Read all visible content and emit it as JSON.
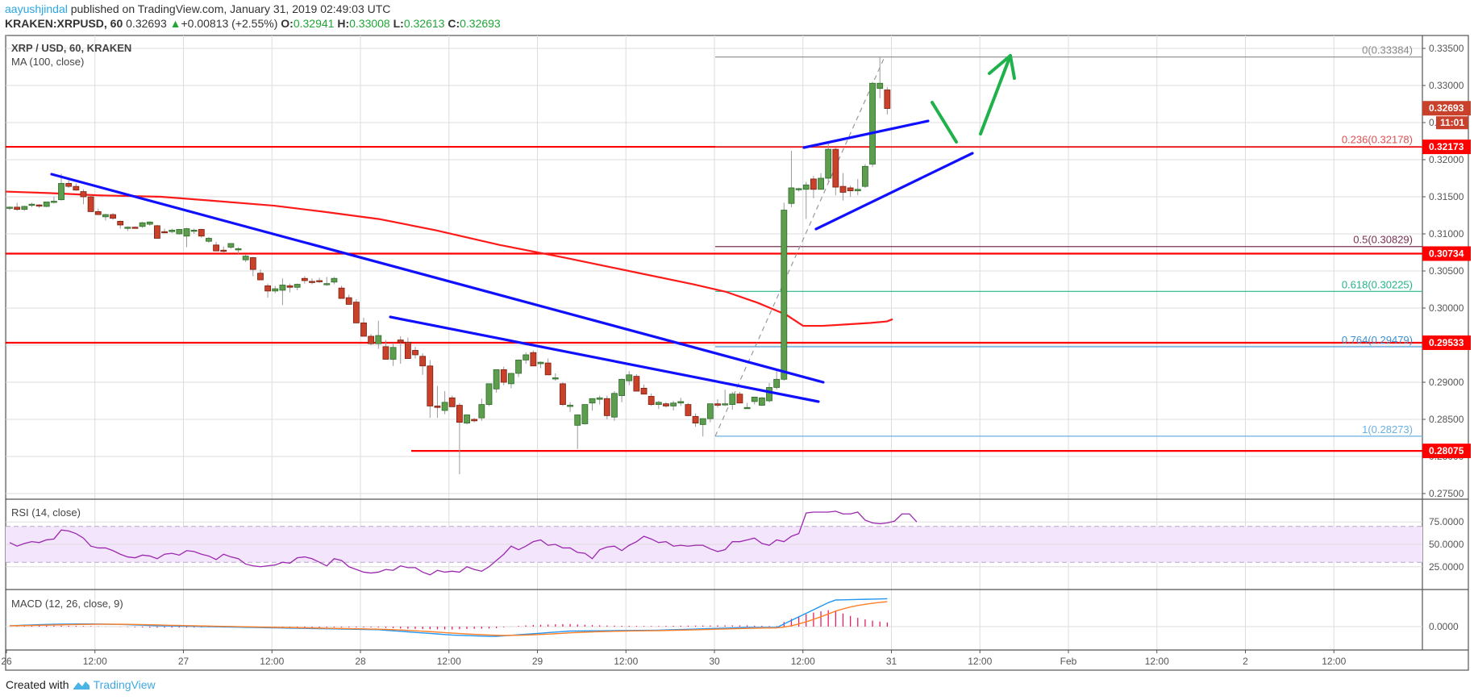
{
  "header": {
    "author": "aayushjindal",
    "published": " published on TradingView.com, January 31, 2019 02:49:03 UTC",
    "symbol": "KRAKEN:XRPUSD, 60",
    "last": "0.32693",
    "change": "+0.00813 (+2.55%)",
    "open_label": "O:",
    "open": "0.32941",
    "high_label": "H:",
    "high": "0.33008",
    "low_label": "L:",
    "low": "0.32613",
    "close_label": "C:",
    "close": "0.32693",
    "arrow": "▲"
  },
  "legends": {
    "main": "XRP / USD, 60, KRAKEN",
    "ma": "MA (100, close)",
    "rsi": "RSI (14, close)",
    "macd": "MACD (12, 26, close, 9)"
  },
  "footer": {
    "created": "Created with",
    "brand": "TradingView"
  },
  "colors": {
    "up": "#5d9e4e",
    "down": "#c9412a",
    "ma": "#ff1a1a",
    "trend": "#1010ff",
    "arrow": "#1fb24a",
    "rsi": "#9c27b0",
    "macd": "#2196f3",
    "signal": "#ff7f27",
    "hist": "#e91e63",
    "hline": "#ff0000"
  },
  "chart_data": {
    "type": "candlestick",
    "title": "XRP / USD, 60, KRAKEN",
    "price_axis_ticks": [
      "0.33500",
      "0.33000",
      "0.32500",
      "0.32000",
      "0.31500",
      "0.31000",
      "0.30500",
      "0.30000",
      "0.29500",
      "0.29000",
      "0.28500",
      "0.28000",
      "0.27500"
    ],
    "time_axis_ticks": [
      "26",
      "12:00",
      "27",
      "12:00",
      "28",
      "12:00",
      "29",
      "12:00",
      "30",
      "12:00",
      "31",
      "12:00",
      "Feb",
      "12:00",
      "2",
      "12:00"
    ],
    "ylim": [
      0.2735,
      0.3365
    ],
    "price_labels": [
      {
        "value": "0.32693",
        "color": "#c9412a"
      },
      {
        "value": "11:01",
        "color": "#c9412a"
      },
      {
        "value": "0.32173",
        "color": "#ff0000"
      },
      {
        "value": "0.30734",
        "color": "#ff0000"
      },
      {
        "value": "0.29533",
        "color": "#ff0000"
      },
      {
        "value": "0.28075",
        "color": "#ff0000"
      }
    ],
    "horizontal_levels": [
      0.32173,
      0.30734,
      0.29533,
      0.28075
    ],
    "fibonacci": [
      {
        "label": "0(0.33384)",
        "level": 0.33384,
        "color": "#888888"
      },
      {
        "label": "0.236(0.32178)",
        "level": 0.32178,
        "color": "#e05050"
      },
      {
        "label": "0.5(0.30829)",
        "level": 0.30829,
        "color": "#7a3050"
      },
      {
        "label": "0.618(0.30225)",
        "level": 0.30225,
        "color": "#26b58a"
      },
      {
        "label": "0.764(0.29479)",
        "level": 0.29479,
        "color": "#3a8fd0"
      },
      {
        "label": "1(0.28273)",
        "level": 0.28273,
        "color": "#6ab0e0"
      }
    ],
    "candles": [
      [
        0.3135,
        0.3137,
        0.3132,
        0.3136
      ],
      [
        0.3136,
        0.3142,
        0.3131,
        0.3133
      ],
      [
        0.3133,
        0.3138,
        0.3131,
        0.3137
      ],
      [
        0.3139,
        0.3142,
        0.3136,
        0.314
      ],
      [
        0.3139,
        0.314,
        0.3135,
        0.3138
      ],
      [
        0.3137,
        0.3143,
        0.3136,
        0.3143
      ],
      [
        0.3143,
        0.315,
        0.3141,
        0.3144
      ],
      [
        0.3146,
        0.3181,
        0.3145,
        0.3168
      ],
      [
        0.3168,
        0.3172,
        0.3162,
        0.3164
      ],
      [
        0.3164,
        0.3168,
        0.3158,
        0.3159
      ],
      [
        0.3157,
        0.316,
        0.314,
        0.315
      ],
      [
        0.315,
        0.3152,
        0.313,
        0.313
      ],
      [
        0.313,
        0.3134,
        0.3126,
        0.3126
      ],
      [
        0.3123,
        0.3127,
        0.3118,
        0.3126
      ],
      [
        0.3126,
        0.3128,
        0.3119,
        0.3121
      ],
      [
        0.3117,
        0.3118,
        0.3107,
        0.3112
      ],
      [
        0.3109,
        0.311,
        0.3104,
        0.3109
      ],
      [
        0.3109,
        0.311,
        0.3107,
        0.3108
      ],
      [
        0.311,
        0.3116,
        0.3108,
        0.3115
      ],
      [
        0.3113,
        0.3117,
        0.3111,
        0.3116
      ],
      [
        0.3111,
        0.3112,
        0.3094,
        0.3094
      ],
      [
        0.3103,
        0.3107,
        0.3101,
        0.3102
      ],
      [
        0.3103,
        0.3107,
        0.3101,
        0.3105
      ],
      [
        0.31,
        0.3106,
        0.3099,
        0.3106
      ],
      [
        0.3097,
        0.3108,
        0.3082,
        0.3107
      ],
      [
        0.3104,
        0.3107,
        0.31,
        0.3105
      ],
      [
        0.3106,
        0.3107,
        0.3095,
        0.3097
      ],
      [
        0.309,
        0.3096,
        0.3088,
        0.3094
      ],
      [
        0.3085,
        0.3089,
        0.308,
        0.3077
      ],
      [
        0.3078,
        0.3083,
        0.3074,
        0.3077
      ],
      [
        0.3082,
        0.3087,
        0.308,
        0.3087
      ],
      [
        0.308,
        0.3082,
        0.3073,
        0.308
      ],
      [
        0.3065,
        0.3072,
        0.3062,
        0.307
      ],
      [
        0.3068,
        0.3069,
        0.3043,
        0.3052
      ],
      [
        0.3047,
        0.3052,
        0.3038,
        0.3038
      ],
      [
        0.303,
        0.3033,
        0.3014,
        0.3023
      ],
      [
        0.3023,
        0.303,
        0.302,
        0.3026
      ],
      [
        0.3024,
        0.304,
        0.3004,
        0.3031
      ],
      [
        0.303,
        0.3033,
        0.3021,
        0.3028
      ],
      [
        0.3028,
        0.3033,
        0.3024,
        0.3032
      ],
      [
        0.304,
        0.3043,
        0.3033,
        0.3037
      ],
      [
        0.3036,
        0.304,
        0.3032,
        0.3035
      ],
      [
        0.3037,
        0.3041,
        0.3034,
        0.3036
      ],
      [
        0.3033,
        0.3042,
        0.303,
        0.3033
      ],
      [
        0.3035,
        0.3042,
        0.3032,
        0.304
      ],
      [
        0.3027,
        0.303,
        0.302,
        0.3013
      ],
      [
        0.3014,
        0.3018,
        0.3008,
        0.3005
      ],
      [
        0.3008,
        0.3012,
        0.2993,
        0.298
      ],
      [
        0.298,
        0.2987,
        0.2972,
        0.2962
      ],
      [
        0.2962,
        0.2965,
        0.295,
        0.2952
      ],
      [
        0.2952,
        0.2983,
        0.2945,
        0.2963
      ],
      [
        0.2948,
        0.2957,
        0.2935,
        0.2931
      ],
      [
        0.2931,
        0.2953,
        0.2922,
        0.2947
      ],
      [
        0.2957,
        0.2962,
        0.2925,
        0.2954
      ],
      [
        0.2954,
        0.296,
        0.2942,
        0.2932
      ],
      [
        0.2943,
        0.2948,
        0.2932,
        0.2937
      ],
      [
        0.2935,
        0.2939,
        0.291,
        0.2922
      ],
      [
        0.2922,
        0.293,
        0.2852,
        0.2868
      ],
      [
        0.2868,
        0.2895,
        0.2852,
        0.2866
      ],
      [
        0.2862,
        0.2888,
        0.2857,
        0.2873
      ],
      [
        0.2879,
        0.2882,
        0.287,
        0.2867
      ],
      [
        0.2869,
        0.2872,
        0.2776,
        0.2846
      ],
      [
        0.2845,
        0.2855,
        0.2843,
        0.2856
      ],
      [
        0.285,
        0.2852,
        0.2846,
        0.2848
      ],
      [
        0.2852,
        0.2878,
        0.2848,
        0.287
      ],
      [
        0.287,
        0.2889,
        0.2868,
        0.2898
      ],
      [
        0.2891,
        0.2902,
        0.2886,
        0.2917
      ],
      [
        0.2917,
        0.2921,
        0.2896,
        0.29
      ],
      [
        0.2898,
        0.2904,
        0.2892,
        0.2912
      ],
      [
        0.2912,
        0.2926,
        0.2907,
        0.293
      ],
      [
        0.293,
        0.294,
        0.2925,
        0.2937
      ],
      [
        0.294,
        0.2943,
        0.2925,
        0.2922
      ],
      [
        0.2925,
        0.2928,
        0.2919,
        0.2927
      ],
      [
        0.2926,
        0.2932,
        0.2911,
        0.291
      ],
      [
        0.2906,
        0.2912,
        0.2902,
        0.2906
      ],
      [
        0.2898,
        0.29,
        0.2868,
        0.287
      ],
      [
        0.2869,
        0.2873,
        0.286,
        0.2869
      ],
      [
        0.2842,
        0.2855,
        0.281,
        0.2856
      ],
      [
        0.2844,
        0.2862,
        0.2843,
        0.287
      ],
      [
        0.2872,
        0.2875,
        0.2862,
        0.2878
      ],
      [
        0.2877,
        0.2882,
        0.287,
        0.2879
      ],
      [
        0.2878,
        0.2882,
        0.285,
        0.2855
      ],
      [
        0.2853,
        0.2888,
        0.2848,
        0.2885
      ],
      [
        0.2882,
        0.2905,
        0.2873,
        0.2904
      ],
      [
        0.2902,
        0.2915,
        0.2896,
        0.291
      ],
      [
        0.2908,
        0.2911,
        0.2895,
        0.2888
      ],
      [
        0.2892,
        0.2897,
        0.2884,
        0.2884
      ],
      [
        0.2881,
        0.2885,
        0.2868,
        0.287
      ],
      [
        0.287,
        0.2875,
        0.2864,
        0.2873
      ],
      [
        0.2871,
        0.2873,
        0.2866,
        0.2868
      ],
      [
        0.2868,
        0.2875,
        0.2862,
        0.2872
      ],
      [
        0.2872,
        0.2879,
        0.2868,
        0.2874
      ],
      [
        0.287,
        0.2872,
        0.2854,
        0.2855
      ],
      [
        0.2854,
        0.2858,
        0.284,
        0.2845
      ],
      [
        0.2843,
        0.285,
        0.2827,
        0.2851
      ],
      [
        0.2851,
        0.2868,
        0.2846,
        0.2871
      ],
      [
        0.2871,
        0.2877,
        0.2866,
        0.2869
      ],
      [
        0.287,
        0.289,
        0.2868,
        0.2871
      ],
      [
        0.287,
        0.2887,
        0.2863,
        0.2884
      ],
      [
        0.2884,
        0.2887,
        0.2873,
        0.2872
      ],
      [
        0.2866,
        0.2872,
        0.2865,
        0.2866
      ],
      [
        0.2874,
        0.2878,
        0.287,
        0.288
      ],
      [
        0.2869,
        0.288,
        0.2868,
        0.2879
      ],
      [
        0.2875,
        0.2899,
        0.2873,
        0.2893
      ],
      [
        0.2893,
        0.2915,
        0.289,
        0.2904
      ],
      [
        0.2904,
        0.3142,
        0.2902,
        0.3132
      ],
      [
        0.3141,
        0.3212,
        0.3136,
        0.3162
      ],
      [
        0.316,
        0.3162,
        0.3157,
        0.3161
      ],
      [
        0.316,
        0.317,
        0.312,
        0.3166
      ],
      [
        0.3174,
        0.3178,
        0.3148,
        0.316
      ],
      [
        0.316,
        0.3182,
        0.316,
        0.3175
      ],
      [
        0.3175,
        0.3225,
        0.317,
        0.3214
      ],
      [
        0.3214,
        0.3216,
        0.3152,
        0.3163
      ],
      [
        0.3164,
        0.3182,
        0.3145,
        0.3156
      ],
      [
        0.3162,
        0.3165,
        0.315,
        0.3158
      ],
      [
        0.3158,
        0.3174,
        0.3152,
        0.316
      ],
      [
        0.3164,
        0.3194,
        0.3162,
        0.3191
      ],
      [
        0.3194,
        0.3305,
        0.319,
        0.3303
      ],
      [
        0.3296,
        0.3338,
        0.3283,
        0.3303
      ],
      [
        0.3294,
        0.3298,
        0.3261,
        0.3269
      ]
    ],
    "ma100": [
      [
        7,
        0.3157
      ],
      [
        60,
        0.3155
      ],
      [
        120,
        0.3152
      ],
      [
        200,
        0.315
      ],
      [
        260,
        0.3145
      ],
      [
        340,
        0.3138
      ],
      [
        400,
        0.313
      ],
      [
        470,
        0.312
      ],
      [
        540,
        0.3105
      ],
      [
        620,
        0.3085
      ],
      [
        700,
        0.3068
      ],
      [
        780,
        0.305
      ],
      [
        860,
        0.3032
      ],
      [
        900,
        0.3022
      ],
      [
        940,
        0.3007
      ],
      [
        975,
        0.2991
      ],
      [
        996,
        0.2976
      ],
      [
        1020,
        0.2976
      ],
      [
        1050,
        0.2978
      ],
      [
        1080,
        0.298
      ],
      [
        1100,
        0.2982
      ],
      [
        1107,
        0.2985
      ]
    ],
    "rsi": {
      "levels": [
        70,
        50,
        30
      ],
      "ylim": [
        5,
        95
      ],
      "ticks": [
        "75.0000",
        "50.0000",
        "25.0000"
      ]
    },
    "macd": {
      "ticks": [
        "0.0000"
      ]
    }
  }
}
